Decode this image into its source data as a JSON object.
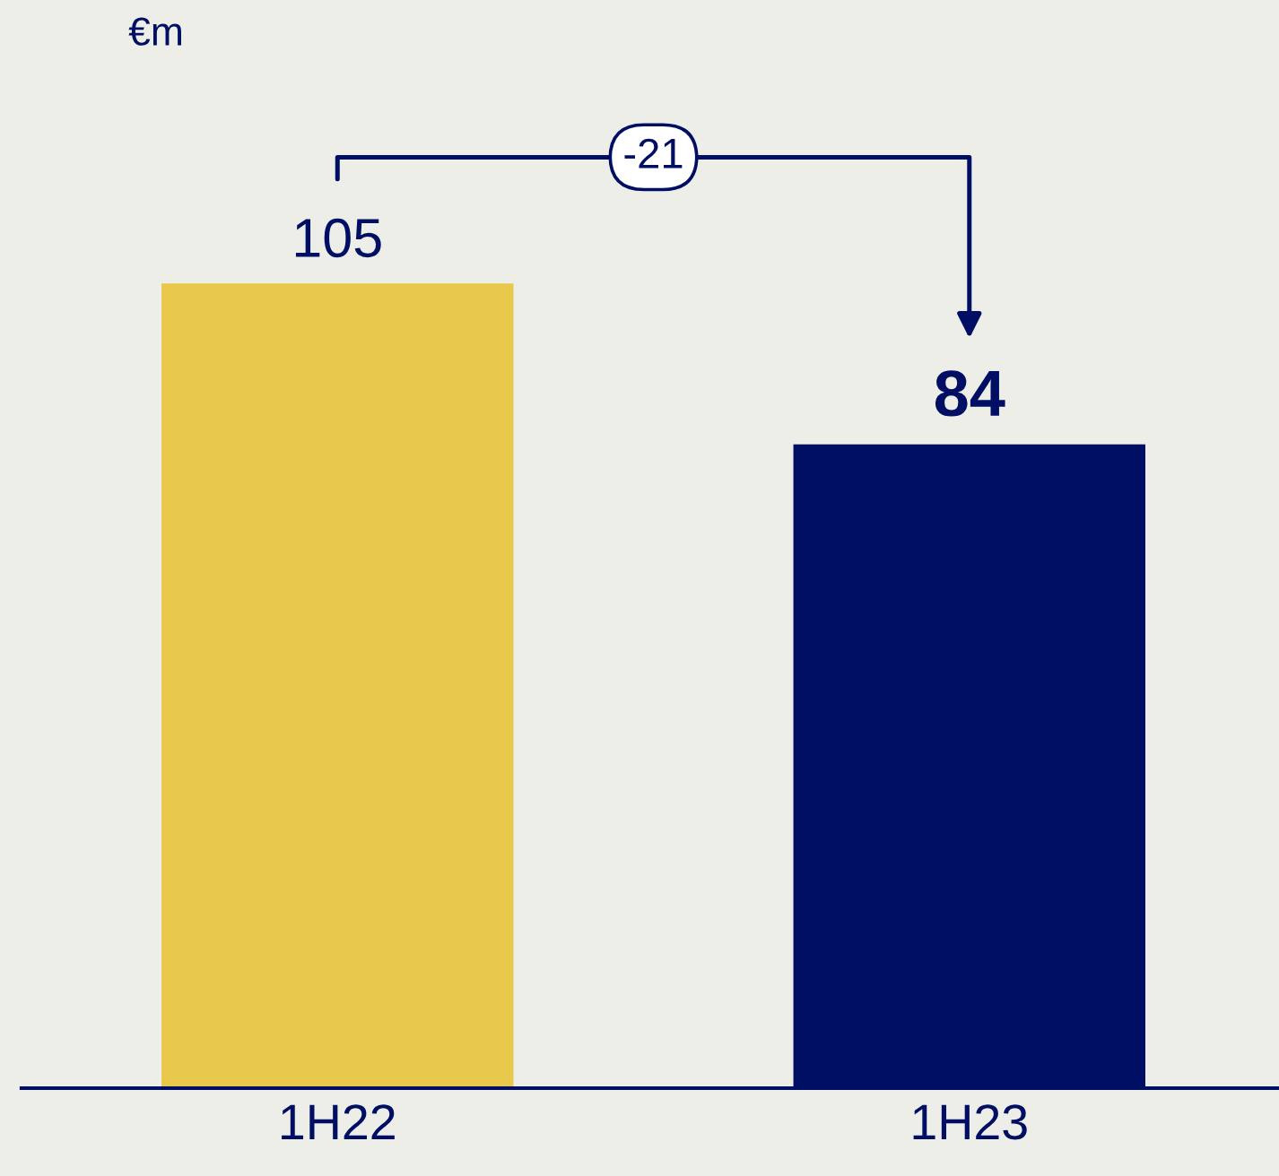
{
  "chart_data": {
    "type": "bar",
    "ylabel": "€m",
    "categories": [
      "1H22",
      "1H23"
    ],
    "values": [
      105,
      84
    ],
    "colors": [
      "#e8c84a",
      "#000f64"
    ],
    "ylim": [
      0,
      142
    ],
    "data_labels": true,
    "annotations": [
      "-21"
    ]
  }
}
